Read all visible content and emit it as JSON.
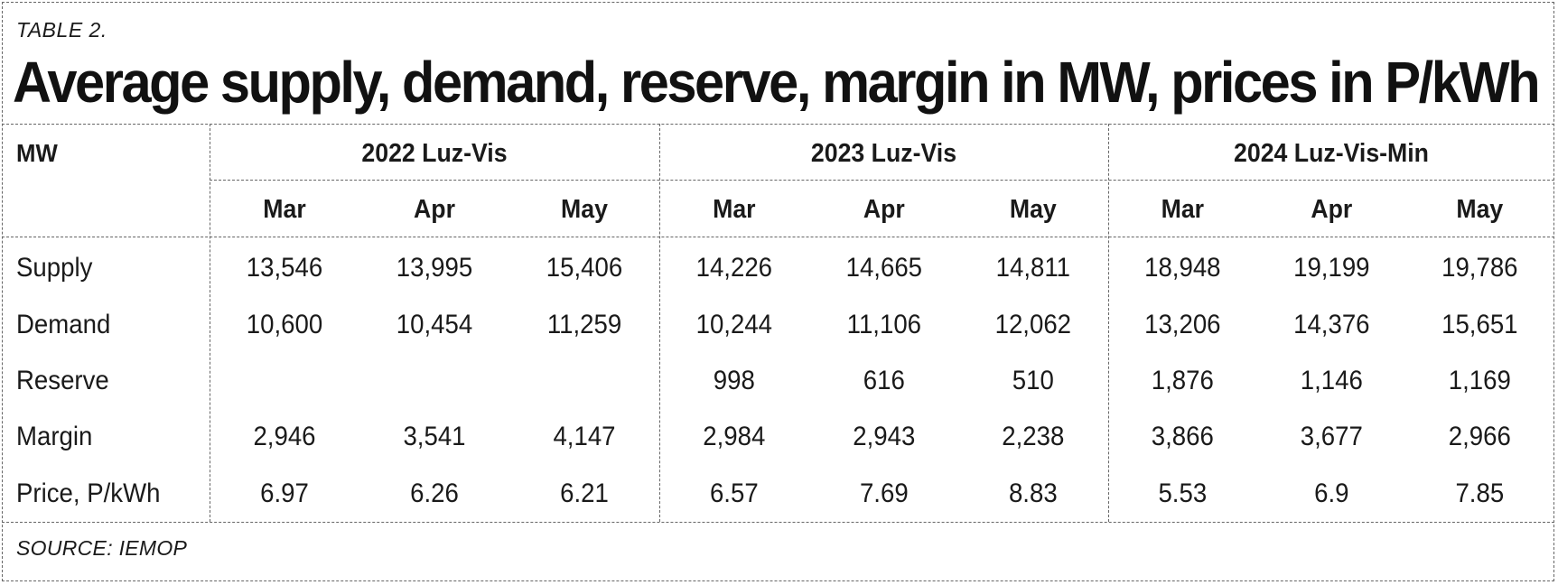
{
  "table_label": "TABLE 2.",
  "title": "Average supply, demand, reserve, margin in MW, prices in P/kWh",
  "source": "SOURCE: IEMOP",
  "table": {
    "corner_header": "MW",
    "groups": [
      {
        "name": "2022 Luz-Vis",
        "months": [
          "Mar",
          "Apr",
          "May"
        ]
      },
      {
        "name": "2023 Luz-Vis",
        "months": [
          "Mar",
          "Apr",
          "May"
        ]
      },
      {
        "name": "2024 Luz-Vis-Min",
        "months": [
          "Mar",
          "Apr",
          "May"
        ]
      }
    ],
    "rows": [
      {
        "label": "Supply",
        "values": [
          "13,546",
          "13,995",
          "15,406",
          "14,226",
          "14,665",
          "14,811",
          "18,948",
          "19,199",
          "19,786"
        ]
      },
      {
        "label": "Demand",
        "values": [
          "10,600",
          "10,454",
          "11,259",
          "10,244",
          "11,106",
          "12,062",
          "13,206",
          "14,376",
          "15,651"
        ]
      },
      {
        "label": "Reserve",
        "values": [
          "",
          "",
          "",
          "998",
          "616",
          "510",
          "1,876",
          "1,146",
          "1,169"
        ]
      },
      {
        "label": "Margin",
        "values": [
          "2,946",
          "3,541",
          "4,147",
          "2,984",
          "2,943",
          "2,238",
          "3,866",
          "3,677",
          "2,966"
        ]
      },
      {
        "label": "Price, P/kWh",
        "values": [
          "6.97",
          "6.26",
          "6.21",
          "6.57",
          "7.69",
          "8.83",
          "5.53",
          "6.9",
          "7.85"
        ]
      }
    ]
  }
}
